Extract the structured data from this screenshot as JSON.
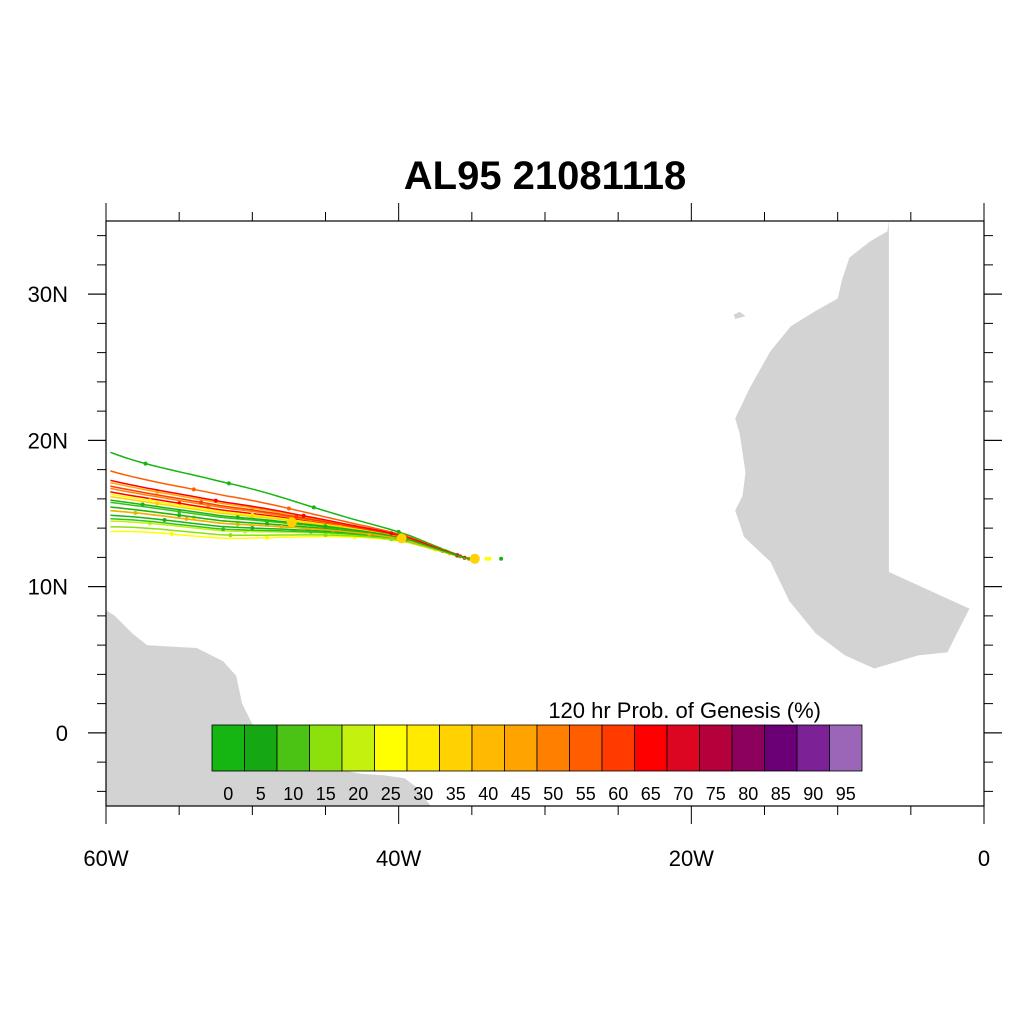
{
  "title": "AL95 21081118",
  "map": {
    "lon_range": [
      -60,
      0
    ],
    "lat_range": [
      -5,
      35
    ],
    "lon_ticks": [
      {
        "value": -60,
        "label": "60W"
      },
      {
        "value": -40,
        "label": "40W"
      },
      {
        "value": -20,
        "label": "20W"
      },
      {
        "value": 0,
        "label": "0"
      }
    ],
    "lat_ticks": [
      {
        "value": 30,
        "label": "30N"
      },
      {
        "value": 20,
        "label": "20N"
      },
      {
        "value": 10,
        "label": "10N"
      },
      {
        "value": 0,
        "label": "0"
      }
    ],
    "land_color": "#d3d3d3",
    "land": {
      "africa": [
        [
          -18.0,
          35
        ],
        [
          -6.5,
          35
        ],
        [
          -6.5,
          11
        ],
        [
          -1,
          8.5
        ],
        [
          -2.5,
          5.5
        ],
        [
          -4.5,
          5.3
        ],
        [
          -7.5,
          4.4
        ],
        [
          -9.5,
          5.3
        ],
        [
          -11.5,
          6.8
        ],
        [
          -13.3,
          9
        ],
        [
          -14.6,
          11.7
        ],
        [
          -16.4,
          13.4
        ],
        [
          -16.8,
          14.6
        ],
        [
          -17.0,
          15.2
        ],
        [
          -16.5,
          16.2
        ],
        [
          -16.3,
          17.8
        ],
        [
          -16.7,
          20.5
        ],
        [
          -17.0,
          21.5
        ],
        [
          -16.0,
          23.6
        ],
        [
          -14.6,
          26.1
        ],
        [
          -13.2,
          27.8
        ],
        [
          -11.6,
          28.8
        ],
        [
          -10.0,
          29.7
        ],
        [
          -9.7,
          31.0
        ],
        [
          -9.2,
          32.5
        ],
        [
          -7.8,
          33.6
        ],
        [
          -6.6,
          34.3
        ],
        [
          -6.5,
          35
        ]
      ],
      "canary": [
        [
          -17.0,
          28.3
        ],
        [
          -16.3,
          28.5
        ],
        [
          -16.7,
          28.8
        ],
        [
          -17.1,
          28.6
        ]
      ],
      "south_america": [
        [
          -60,
          -5
        ],
        [
          -60,
          8.4
        ],
        [
          -59.4,
          8.0
        ],
        [
          -58.2,
          6.8
        ],
        [
          -57.2,
          6.0
        ],
        [
          -55.5,
          5.9
        ],
        [
          -53.8,
          5.8
        ],
        [
          -52.0,
          4.9
        ],
        [
          -51.1,
          3.9
        ],
        [
          -50.7,
          2.0
        ],
        [
          -50.0,
          0.6
        ],
        [
          -49.2,
          -0.2
        ],
        [
          -48.3,
          -0.8
        ],
        [
          -46.9,
          -1.0
        ],
        [
          -45.4,
          -1.5
        ],
        [
          -44.1,
          -2.5
        ],
        [
          -42.6,
          -2.8
        ],
        [
          -41.0,
          -2.9
        ],
        [
          -39.6,
          -3.1
        ],
        [
          -38.8,
          -3.7
        ],
        [
          -38.2,
          -4.5
        ],
        [
          -37.8,
          -5
        ],
        [
          -60,
          -5
        ]
      ]
    },
    "track_center": [
      [
        -34.7,
        11.9
      ],
      [
        -35.2,
        11.9
      ],
      [
        -35.6,
        12.0
      ],
      [
        -36.2,
        12.2
      ],
      [
        -36.8,
        12.4
      ],
      [
        -37.4,
        12.6
      ],
      [
        -38.0,
        12.8
      ],
      [
        -38.6,
        13.0
      ],
      [
        -39.2,
        13.2
      ],
      [
        -40.0,
        13.4
      ],
      [
        -41.0,
        13.6
      ],
      [
        -42.2,
        13.8
      ],
      [
        -43.6,
        14.0
      ],
      [
        -45.0,
        14.2
      ],
      [
        -46.6,
        14.4
      ],
      [
        -48.2,
        14.6
      ],
      [
        -50.0,
        14.8
      ],
      [
        -52.0,
        15.0
      ],
      [
        -54.0,
        15.3
      ],
      [
        -56.0,
        15.6
      ],
      [
        -58.0,
        15.9
      ],
      [
        -60.0,
        16.2
      ]
    ],
    "tracks": [
      {
        "color": "#15b512",
        "lat_offset_west": 3.8,
        "dot_lon": [
          -57.3,
          -51.6,
          -45.8,
          -40.0,
          -34.7
        ]
      },
      {
        "color": "#ff5d00",
        "lat_offset_west": 2.2,
        "dot_lon": [
          -54.0,
          -47.5,
          -39.5,
          -34.7
        ]
      },
      {
        "color": "#ffa900",
        "lat_offset_west": 1.2,
        "dot_lon": [
          -56.5,
          -50.0,
          -43.0,
          -34.7
        ]
      },
      {
        "color": "#ff0000",
        "lat_offset_west": 0.4,
        "dot_lon": [
          -55.0,
          -47.0,
          -40.0,
          -35.5
        ]
      },
      {
        "color": "#ffff00",
        "lat_offset_west": 0.2,
        "dot_lon": [
          -57.0,
          -50.0,
          -43.5,
          -37.0,
          -34.0
        ]
      },
      {
        "color": "#33c318",
        "lat_offset_west": -0.5,
        "dot_lon": [
          -55.0,
          -49.0,
          -42.0,
          -36.0
        ]
      },
      {
        "color": "#8ce10d",
        "lat_offset_west": -1.2,
        "dot_lon": [
          -58.0,
          -51.0,
          -44.0,
          -38.0
        ]
      },
      {
        "color": "#ffd200",
        "lat_offset_west": -0.9,
        "dot_lon": [
          -54.0,
          -47.5,
          -41.0,
          -35.0
        ]
      },
      {
        "color": "#15b512",
        "lat_offset_west": -1.6,
        "dot_lon": [
          -56.0,
          -50.0,
          -44.0,
          -38.5,
          -33.0
        ]
      },
      {
        "color": "#ff8000",
        "lat_offset_west": 0.7,
        "dot_lon": [
          -53.0,
          -46.0,
          -39.0,
          -35.2
        ]
      },
      {
        "color": "#c4f10d",
        "lat_offset_west": -2.1,
        "dot_lon": [
          -57.0,
          -50.5,
          -44.5,
          -39.0
        ]
      },
      {
        "color": "#ffff00",
        "lat_offset_west": -3.0,
        "dot_lon": [
          -55.5,
          -49.0,
          -43.0,
          -37.5,
          -33.8
        ]
      },
      {
        "color": "#15b512",
        "lat_offset_west": -0.9,
        "dot_lon": [
          -55.0,
          -49.0,
          -43.0,
          -37.0
        ]
      },
      {
        "color": "#ff3b00",
        "lat_offset_west": 0.9,
        "dot_lon": [
          -53.5,
          -47.0,
          -41.0,
          -35.8
        ]
      },
      {
        "color": "#33c318",
        "lat_offset_west": -1.9,
        "dot_lon": [
          -52.0,
          -46.0,
          -41.0,
          -36.0
        ]
      },
      {
        "color": "#ffd200",
        "lat_offset_west": 0.0,
        "dot_lon": [
          -56.5,
          -50.0,
          -44.0,
          -38.0
        ]
      },
      {
        "color": "#8ce10d",
        "lat_offset_west": -2.6,
        "dot_lon": [
          -51.5,
          -45.0,
          -40.5
        ]
      },
      {
        "color": "#ffa900",
        "lat_offset_west": -1.2,
        "dot_lon": [
          -54.5,
          -48.0,
          -42.0,
          -36.5
        ]
      },
      {
        "color": "#ff0000",
        "lat_offset_west": 1.4,
        "dot_lon": [
          -52.5,
          -46.5,
          -40.5,
          -36.0
        ]
      },
      {
        "color": "#15b512",
        "lat_offset_west": -0.3,
        "dot_lon": [
          -57.5,
          -51.0,
          -45.0,
          -39.5
        ]
      }
    ],
    "track_highlights": [
      {
        "color": "#ffd200",
        "lon": -47.3,
        "lat": 14.4
      },
      {
        "color": "#ffd200",
        "lon": -39.8,
        "lat": 13.3
      },
      {
        "color": "#ffd200",
        "lon": -34.8,
        "lat": 11.9
      }
    ]
  },
  "colorbar": {
    "title": "120 hr Prob. of Genesis (%)",
    "colors": [
      "#15b512",
      "#15a812",
      "#4bc314",
      "#8ce10d",
      "#c4f10d",
      "#ffff00",
      "#ffea00",
      "#ffd200",
      "#ffb900",
      "#ffa300",
      "#ff8000",
      "#ff5d00",
      "#ff3b00",
      "#ff0000",
      "#dc0522",
      "#b4013c",
      "#8c015c",
      "#6b0076",
      "#7c2296",
      "#9b66b8"
    ],
    "labels": [
      "0",
      "5",
      "10",
      "15",
      "20",
      "25",
      "30",
      "35",
      "40",
      "45",
      "50",
      "55",
      "60",
      "65",
      "70",
      "75",
      "80",
      "85",
      "90",
      "95"
    ]
  }
}
